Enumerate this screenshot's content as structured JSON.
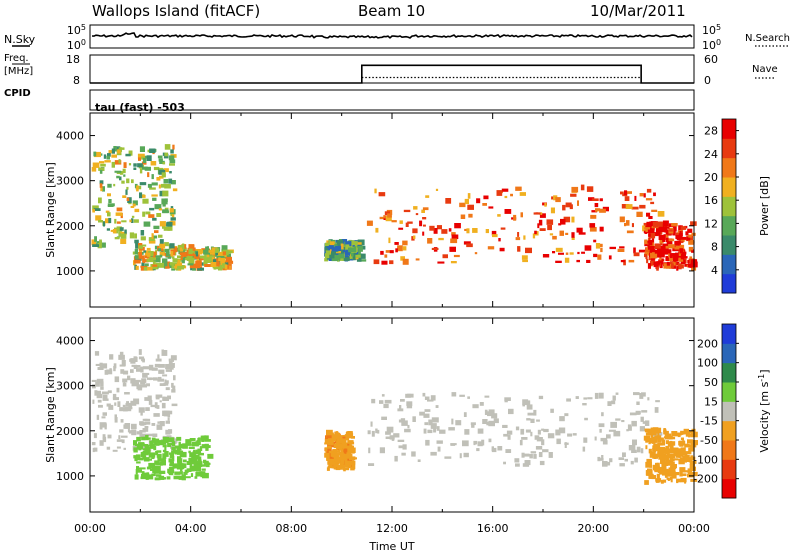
{
  "header": {
    "station": "Wallops Island (fitACF)",
    "beam": "Beam 10",
    "date": "10/Mar/2011"
  },
  "left_labels": {
    "nsky": "N.Sky",
    "freq": "Freq.",
    "freq_unit": "[MHz]",
    "cpid": "CPID"
  },
  "right_labels": {
    "nsearch": "N.Search",
    "nave": "Nave"
  },
  "cpid_text": "tau (fast) -503",
  "noise_panel": {
    "left_ticks": [
      "10^5",
      "10^0"
    ],
    "right_ticks": [
      "10^5",
      "10^0"
    ]
  },
  "freq_panel": {
    "left_ticks": [
      "18",
      "8"
    ],
    "right_ticks": [
      "60",
      "0"
    ],
    "freq_mhz": 10.5,
    "nave_steps": [
      {
        "t0": 0,
        "t1": 10.8,
        "nave": 0
      },
      {
        "t0": 10.8,
        "t1": 21.9,
        "nave": 38
      },
      {
        "t0": 21.9,
        "t1": 24,
        "nave": 0
      }
    ]
  },
  "colors": {
    "power_scale": [
      "#1f3cd8",
      "#2a66b8",
      "#3a8a6a",
      "#58a858",
      "#9ec23a",
      "#f0b020",
      "#f07818",
      "#e83a10",
      "#e80000"
    ],
    "velocity_scale": [
      "#1f3cd8",
      "#2a66b8",
      "#2e8a4a",
      "#6fcb3a",
      "#c0c0b8",
      "#f0a020",
      "#f07818",
      "#e83a10",
      "#e80000"
    ]
  },
  "chart_data": [
    {
      "type": "heatmap",
      "title": "Power",
      "xlabel": "Time UT",
      "ylabel": "Slant Range [km]",
      "xlim": [
        0,
        24
      ],
      "ylim": [
        200,
        4500
      ],
      "x_ticks": [
        "00:00",
        "04:00",
        "08:00",
        "12:00",
        "16:00",
        "20:00",
        "00:00"
      ],
      "y_ticks": [
        "1000",
        "2000",
        "3000",
        "4000"
      ],
      "colorbar": {
        "label": "Power [dB]",
        "ticks": [
          "4",
          "8",
          "12",
          "16",
          "20",
          "24",
          "28"
        ],
        "range": [
          0,
          30
        ]
      },
      "features": [
        {
          "t0": 0.05,
          "t1": 3.3,
          "r0": 1500,
          "r1": 3700,
          "value": 14
        },
        {
          "t0": 1.7,
          "t1": 5.5,
          "r0": 1000,
          "r1": 1500,
          "value": 16
        },
        {
          "t0": 9.3,
          "t1": 10.7,
          "r0": 1200,
          "r1": 1600,
          "value": 11
        },
        {
          "t0": 11.0,
          "t1": 22.6,
          "r0": 1100,
          "r1": 2800,
          "value": 24
        },
        {
          "t0": 22.0,
          "t1": 23.9,
          "r0": 1000,
          "r1": 2000,
          "value": 27
        }
      ]
    },
    {
      "type": "heatmap",
      "title": "Velocity",
      "xlabel": "Time UT",
      "ylabel": "Slant Range [km]",
      "xlim": [
        0,
        24
      ],
      "ylim": [
        200,
        4500
      ],
      "x_ticks": [
        "00:00",
        "04:00",
        "08:00",
        "12:00",
        "16:00",
        "20:00",
        "00:00"
      ],
      "y_ticks": [
        "1000",
        "2000",
        "3000",
        "4000"
      ],
      "colorbar": {
        "label": "Velocity [m s^-1]",
        "ticks": [
          "200",
          "100",
          "50",
          "15",
          "-15",
          "-50",
          "-100",
          "-200"
        ],
        "range": [
          -250,
          250
        ]
      },
      "features": [
        {
          "t0": 0.05,
          "t1": 3.3,
          "r0": 1500,
          "r1": 3700,
          "value": 0
        },
        {
          "t0": 1.7,
          "t1": 4.7,
          "r0": 900,
          "r1": 1800,
          "value": 60
        },
        {
          "t0": 9.3,
          "t1": 10.4,
          "r0": 1100,
          "r1": 1900,
          "value": -70
        },
        {
          "t0": 11.0,
          "t1": 22.6,
          "r0": 1200,
          "r1": 2800,
          "value": 0
        },
        {
          "t0": 22.0,
          "t1": 23.9,
          "r0": 800,
          "r1": 2000,
          "value": -60
        }
      ]
    }
  ]
}
